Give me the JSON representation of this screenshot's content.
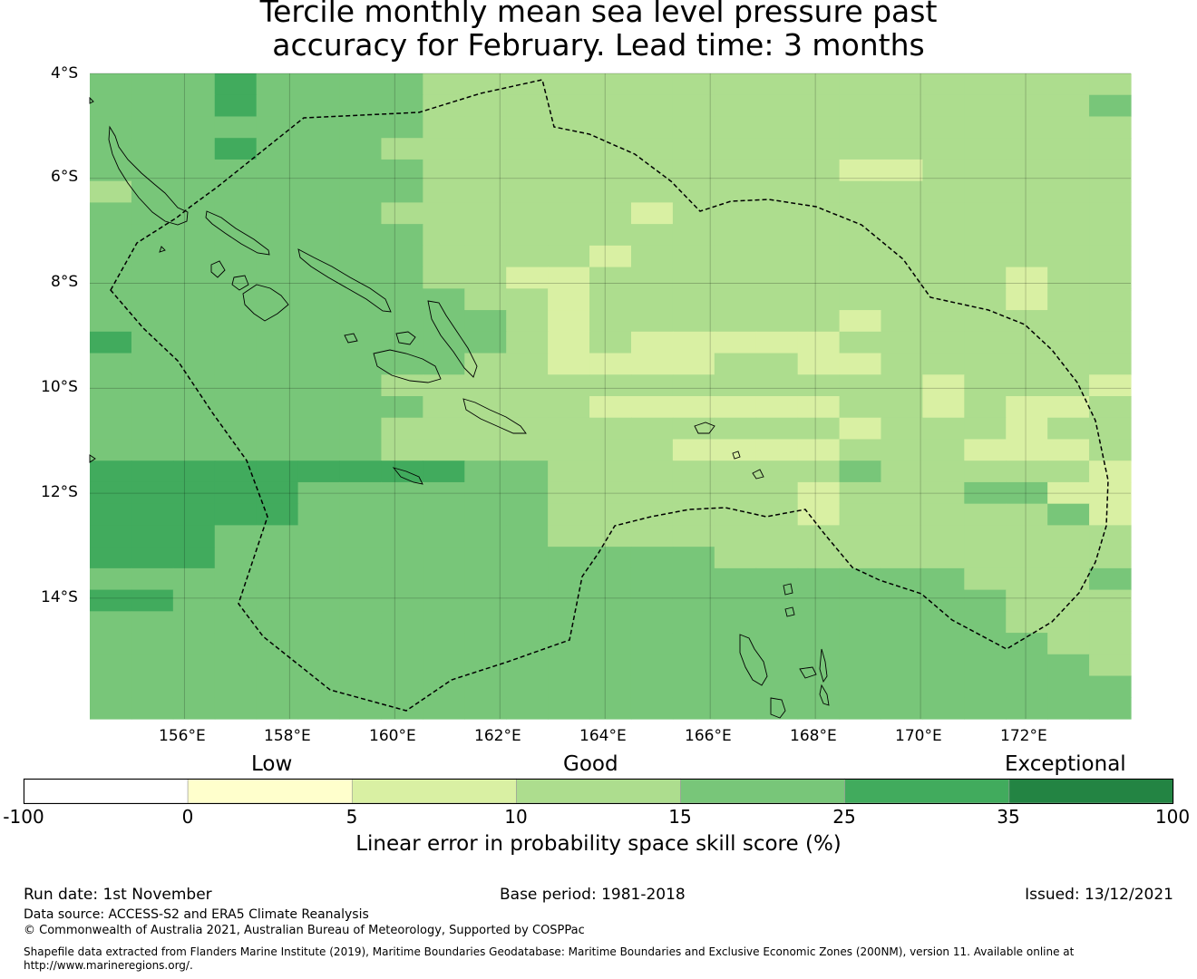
{
  "title": {
    "line1": "Tercile monthly mean sea level pressure past",
    "line2": "accuracy for February. Lead time: 3 months"
  },
  "map": {
    "lat_labels": [
      "4°S",
      "6°S",
      "8°S",
      "10°S",
      "12°S",
      "14°S"
    ],
    "lon_labels": [
      "156°E",
      "158°E",
      "160°E",
      "162°E",
      "164°E",
      "166°E",
      "168°E",
      "170°E",
      "172°E"
    ],
    "extent": {
      "lon_min": 154.2,
      "lon_max": 174.0,
      "lat_min": -16.3,
      "lat_max": -4.0
    },
    "grid_lons": [
      156,
      158,
      160,
      162,
      164,
      166,
      168,
      170,
      172
    ],
    "grid_lats": [
      -4,
      -6,
      -8,
      -10,
      -12,
      -14
    ],
    "category_colors": [
      "#ffffcc",
      "#d9f0a3",
      "#addd8e",
      "#78c679",
      "#41ab5d",
      "#238443"
    ],
    "skill_grid_rows": [
      "3334333322222222222222222",
      "3334333322222222222222223",
      "3333333322222222222222222",
      "3334333222222222222222222",
      "3333333322222222221122222",
      "2333333322222222222222222",
      "3333333222222122222222222",
      "3333333322222222222222222",
      "3333333322221222222222222",
      "3333333322112222222222122",
      "3333333332212222222222122",
      "3333333333212222221222222",
      "4333333333212111112222222",
      "3333333332211112211222222",
      "3333333222222222222212221",
      "3333333322221111112212112",
      "3333333222222222221222122",
      "3333333222222211112221112",
      "4444444443322222223222221",
      "4444433333322222212223311",
      "4444433333322222212222231",
      "4443333333322222222222222",
      "4443333333333332222222222",
      "3333333333333333333332223",
      "4433333333333333333333222",
      "3333333333333333333333222",
      "3333333333333333333333322",
      "3333333333333333333333332",
      "3333333333333333333333333",
      "3333333333333333333333333"
    ]
  },
  "colorbar": {
    "category_labels": [
      "Low",
      "Good",
      "Exceptional"
    ],
    "bins": [
      {
        "from": -100,
        "to": 0,
        "color": "#ffffff"
      },
      {
        "from": 0,
        "to": 5,
        "color": "#ffffcc"
      },
      {
        "from": 5,
        "to": 10,
        "color": "#d9f0a3"
      },
      {
        "from": 10,
        "to": 15,
        "color": "#addd8e"
      },
      {
        "from": 15,
        "to": 25,
        "color": "#78c679"
      },
      {
        "from": 25,
        "to": 35,
        "color": "#41ab5d"
      },
      {
        "from": 35,
        "to": 100,
        "color": "#238443"
      }
    ],
    "ticks": [
      "-100",
      "0",
      "5",
      "10",
      "15",
      "25",
      "35",
      "100"
    ],
    "label": "Linear error in probability space skill score (%)"
  },
  "footer": {
    "run_date": "Run date: 1st November",
    "base_period": "Base period: 1981-2018",
    "issued": "Issued: 13/12/2021",
    "data_source": "Data source: ACCESS-S2 and ERA5 Climate Reanalysis",
    "copyright": "© Commonwealth of Australia 2021, Australian Bureau of Meteorology, Supported by COSPPac",
    "shapefile_line1": "Shapefile data extracted from Flanders Marine Institute (2019), Maritime Boundaries Geodatabase: Maritime Boundaries and Exclusive Economic Zones (200NM), version 11. Available online at",
    "shapefile_line2": "http://www.marineregions.org/."
  }
}
